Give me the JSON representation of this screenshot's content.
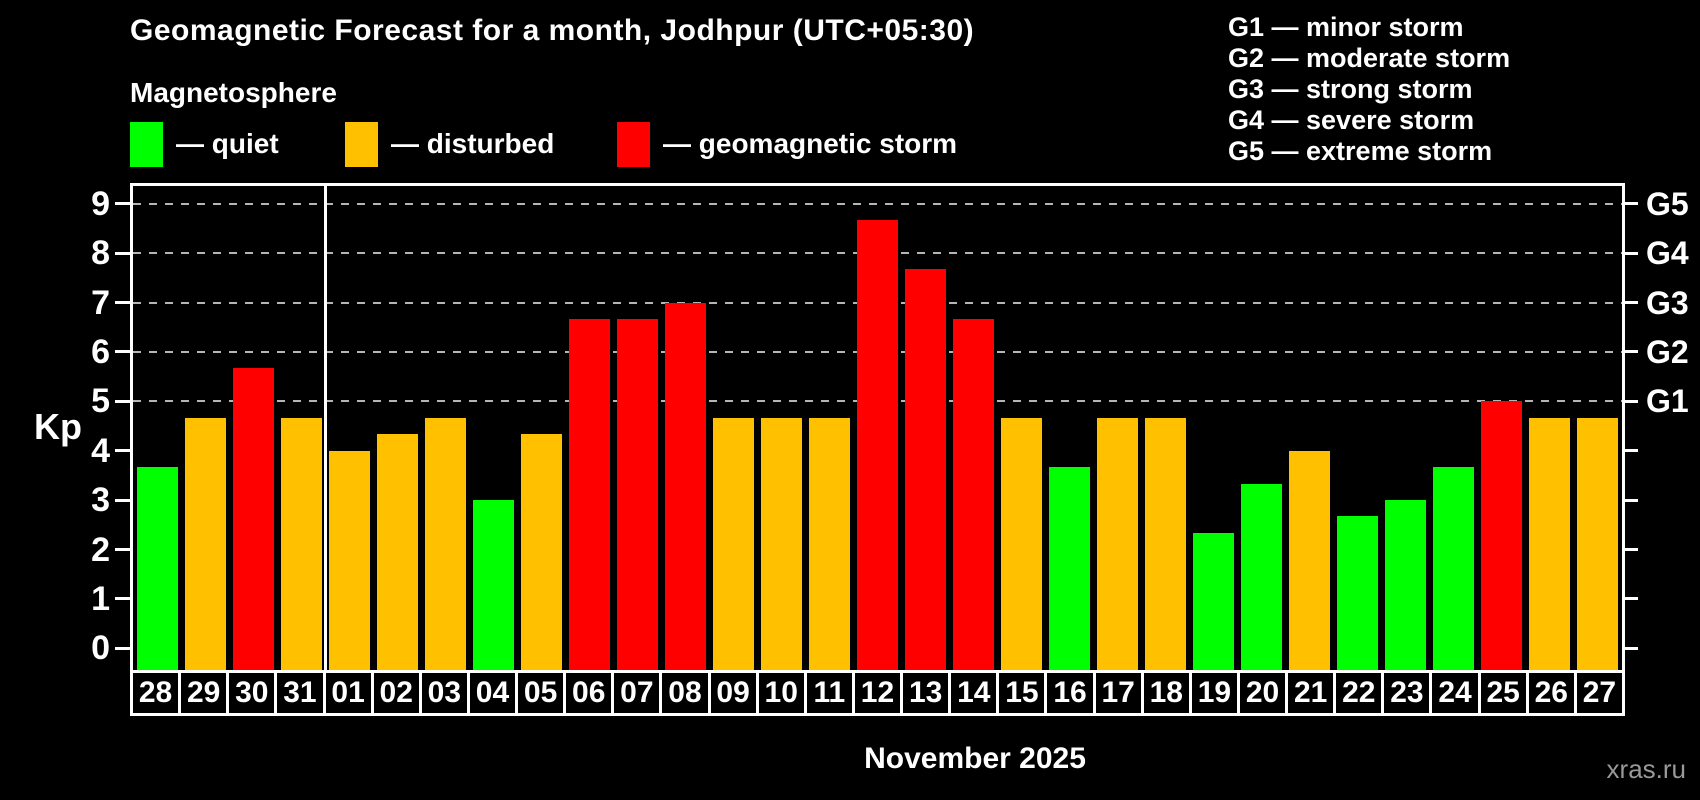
{
  "title": "Geomagnetic Forecast for a month, Jodhpur (UTC+05:30)",
  "subtitle": "Magnetosphere",
  "legend": {
    "items": [
      {
        "key": "quiet",
        "label": "— quiet",
        "color": "#00ff00"
      },
      {
        "key": "disturbed",
        "label": "— disturbed",
        "color": "#ffc000"
      },
      {
        "key": "storm",
        "label": "— geomagnetic storm",
        "color": "#ff0000"
      }
    ]
  },
  "g_scale_legend": [
    "G1 — minor storm",
    "G2 — moderate storm",
    "G3 — strong storm",
    "G4 — severe storm",
    "G5 — extreme storm"
  ],
  "footer": {
    "month_label": "November 2025",
    "watermark": "xras.ru"
  },
  "chart_data": {
    "type": "bar",
    "title": "Geomagnetic Forecast for a month, Jodhpur (UTC+05:30)",
    "ylabel": "Kp",
    "xlabel": "November 2025",
    "ylim": [
      -0.45,
      9.4
    ],
    "y_ticks": [
      0,
      1,
      2,
      3,
      4,
      5,
      6,
      7,
      8,
      9
    ],
    "grid_levels": [
      5,
      6,
      7,
      8,
      9
    ],
    "grid": "dashed horizontal at storm levels only",
    "right_axis_labels": [
      {
        "level": 5,
        "label": "G1"
      },
      {
        "level": 6,
        "label": "G2"
      },
      {
        "level": 7,
        "label": "G3"
      },
      {
        "level": 8,
        "label": "G4"
      },
      {
        "level": 9,
        "label": "G5"
      }
    ],
    "month_separator_after_index": 3,
    "categories": [
      "28",
      "29",
      "30",
      "31",
      "01",
      "02",
      "03",
      "04",
      "05",
      "06",
      "07",
      "08",
      "09",
      "10",
      "11",
      "12",
      "13",
      "14",
      "15",
      "16",
      "17",
      "18",
      "19",
      "20",
      "21",
      "22",
      "23",
      "24",
      "25",
      "26",
      "27"
    ],
    "series": [
      {
        "name": "Kp forecast",
        "values": [
          3.67,
          4.67,
          5.67,
          4.67,
          4.0,
          4.33,
          4.67,
          3.0,
          4.33,
          6.67,
          6.67,
          7.0,
          4.67,
          4.67,
          4.67,
          8.67,
          7.67,
          6.67,
          4.67,
          3.67,
          4.67,
          4.67,
          2.33,
          3.33,
          4.0,
          2.67,
          3.0,
          3.67,
          5.0,
          4.67,
          4.67
        ]
      }
    ],
    "statuses": [
      "quiet",
      "disturbed",
      "storm",
      "disturbed",
      "disturbed",
      "disturbed",
      "disturbed",
      "quiet",
      "disturbed",
      "storm",
      "storm",
      "storm",
      "disturbed",
      "disturbed",
      "disturbed",
      "storm",
      "storm",
      "storm",
      "disturbed",
      "quiet",
      "disturbed",
      "disturbed",
      "quiet",
      "quiet",
      "disturbed",
      "quiet",
      "quiet",
      "quiet",
      "storm",
      "disturbed",
      "disturbed"
    ],
    "status_colors": {
      "quiet": "#00ff00",
      "disturbed": "#ffc000",
      "storm": "#ff0000"
    },
    "legend_position": "top-left"
  }
}
